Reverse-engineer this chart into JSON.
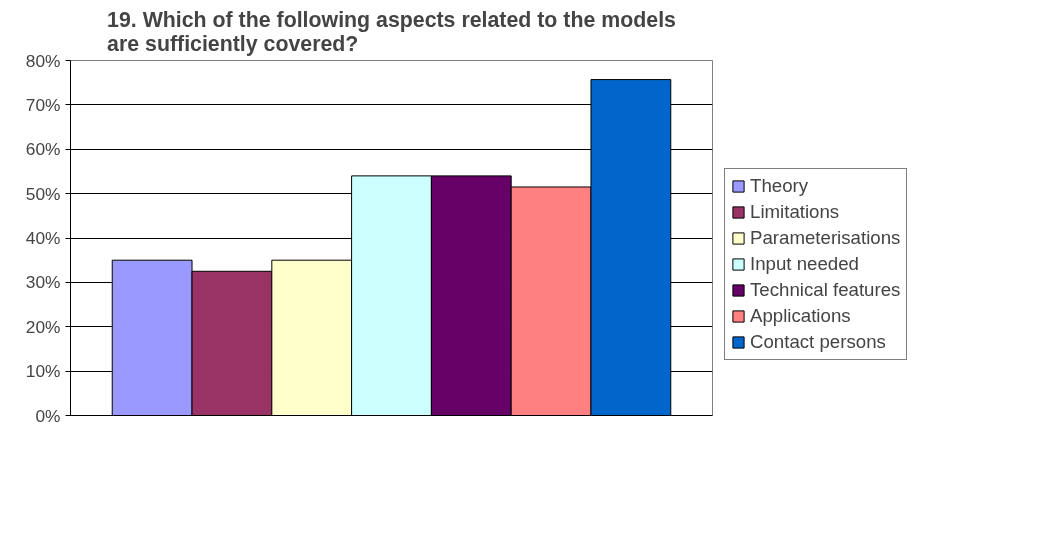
{
  "chart_data": {
    "type": "bar",
    "title": "19. Which of the following aspects related to the models are sufficiently covered?",
    "categories": [
      null
    ],
    "series": [
      {
        "name": "Theory",
        "color": "#9999ff",
        "values": [
          35
        ]
      },
      {
        "name": "Limitations",
        "color": "#993366",
        "values": [
          32.5
        ]
      },
      {
        "name": "Parameterisations",
        "color": "#ffffcc",
        "values": [
          35
        ]
      },
      {
        "name": "Input needed",
        "color": "#ccffff",
        "values": [
          54
        ]
      },
      {
        "name": "Technical features",
        "color": "#660066",
        "values": [
          54
        ]
      },
      {
        "name": "Applications",
        "color": "#ff8080",
        "values": [
          51.5
        ]
      },
      {
        "name": "Contact persons",
        "color": "#0066cc",
        "values": [
          75.7
        ]
      }
    ],
    "ylim": [
      0,
      80
    ],
    "yticks": [
      {
        "value": 0,
        "label": "0%"
      },
      {
        "value": 10,
        "label": "10%"
      },
      {
        "value": 20,
        "label": "20%"
      },
      {
        "value": 30,
        "label": "30%"
      },
      {
        "value": 40,
        "label": "40%"
      },
      {
        "value": 50,
        "label": "50%"
      },
      {
        "value": 60,
        "label": "60%"
      },
      {
        "value": 70,
        "label": "70%"
      },
      {
        "value": 80,
        "label": "80%"
      }
    ],
    "grid": "y",
    "legend": "right"
  }
}
